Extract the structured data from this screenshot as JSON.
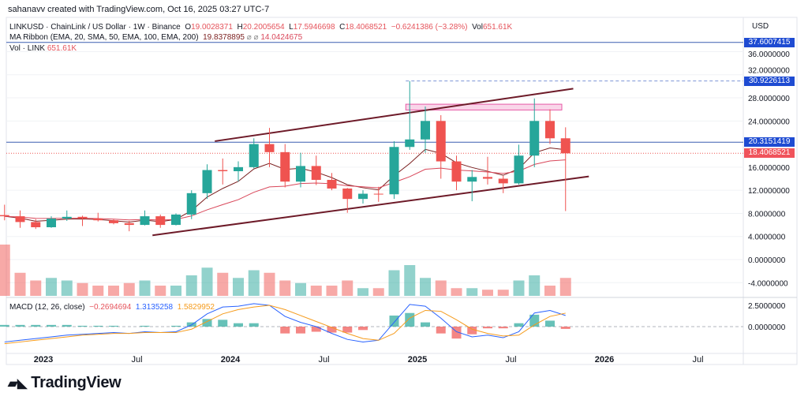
{
  "credit": "sahanavv created with TradingView.com, Oct 16, 2025 03:27 UTC-7",
  "legend": {
    "symbol": "LINKUSD · ChainLink / US Dollar · 1W · Binance",
    "o_label": "O",
    "o": "19.0028371",
    "h_label": "H",
    "h": "20.2005654",
    "l_label": "L",
    "l": "17.5946698",
    "c_label": "C",
    "c": "18.4068521",
    "change": "−0.6241386 (−3.28%)",
    "vol_label": "Vol",
    "vol": "651.61K",
    "ma_title": "MA Ribbon (EMA, 20, SMA, 50, EMA, 100, EMA, 200)",
    "ma_v1": "19.8378895",
    "ma_na": "⌀ ⌀",
    "ma_v2": "14.0424675",
    "vol_title": "Vol · LINK",
    "vol_value": "651.61K",
    "macd_title": "MACD (12, 26, close)",
    "macd_hist": "−0.2694694",
    "macd": "1.3135258",
    "macd_signal": "1.5829952"
  },
  "price_axis": {
    "currency": "USD",
    "ticks": [
      "36.0000000",
      "32.0000000",
      "28.0000000",
      "24.0000000",
      "16.0000000",
      "12.0000000",
      "8.0000000",
      "4.0000000",
      "0.0000000",
      "-4.0000000"
    ],
    "tick_values": [
      36,
      32,
      28,
      24,
      16,
      12,
      8,
      4,
      0,
      -4
    ],
    "tags": [
      {
        "label": "37.6007415",
        "value": 37.6007415,
        "color": "#1e4bd2"
      },
      {
        "label": "30.9226113",
        "value": 30.9226113,
        "color": "#1e4bd2"
      },
      {
        "label": "20.3151419",
        "value": 20.3151419,
        "color": "#1e4bd2"
      },
      {
        "label": "18.4068521",
        "value": 18.4068521,
        "color": "#f0535b"
      }
    ]
  },
  "macd_axis": {
    "ticks": [
      "2.5000000",
      "0.0000000"
    ],
    "tick_values": [
      2.5,
      0
    ]
  },
  "time_axis": {
    "labels": [
      "2023",
      "Jul",
      "2024",
      "Jul",
      "2025",
      "Jul",
      "2026",
      "Jul"
    ],
    "bold": [
      true,
      false,
      true,
      false,
      true,
      false,
      true,
      false
    ]
  },
  "brand": "TradingView",
  "colors": {
    "up": "#26a69a",
    "down": "#ef5350",
    "ma_fast": "#7b1f1f",
    "ma_slow": "#d9475a",
    "macd": "#2962ff",
    "signal": "#f59b1c",
    "trendline": "#6d1a28",
    "zone": "#e75aa6"
  },
  "chart_data": {
    "type": "candlestick",
    "interval": "1W (shown approximately per month)",
    "months": [
      "2022-10",
      "2022-11",
      "2022-12",
      "2023-01",
      "2023-02",
      "2023-03",
      "2023-04",
      "2023-05",
      "2023-06",
      "2023-07",
      "2023-08",
      "2023-09",
      "2023-10",
      "2023-11",
      "2023-12",
      "2024-01",
      "2024-02",
      "2024-03",
      "2024-04",
      "2024-05",
      "2024-06",
      "2024-07",
      "2024-08",
      "2024-09",
      "2024-10",
      "2024-11",
      "2024-12",
      "2025-01",
      "2025-02",
      "2025-03",
      "2025-04",
      "2025-05",
      "2025-06",
      "2025-07",
      "2025-08",
      "2025-09",
      "2025-10"
    ],
    "ohlc": [
      [
        7.7,
        9.5,
        6.8,
        7.5
      ],
      [
        7.5,
        8.5,
        5.5,
        6.5
      ],
      [
        6.5,
        7,
        5.3,
        5.6
      ],
      [
        5.6,
        7.5,
        5.5,
        7.1
      ],
      [
        7.1,
        8.5,
        6.7,
        7.4
      ],
      [
        7.4,
        7.6,
        5.8,
        7.1
      ],
      [
        7.1,
        8.1,
        6.6,
        6.8
      ],
      [
        6.8,
        7,
        6.1,
        6.3
      ],
      [
        6.3,
        6.7,
        4.9,
        6.0
      ],
      [
        6.0,
        8.5,
        5.9,
        7.5
      ],
      [
        7.5,
        7.8,
        5.5,
        6.0
      ],
      [
        6.0,
        8.0,
        5.9,
        7.8
      ],
      [
        7.8,
        12,
        7,
        11.5
      ],
      [
        11.5,
        16.5,
        10.5,
        15.5
      ],
      [
        15.5,
        17.5,
        13,
        15.3
      ],
      [
        15.3,
        17,
        13.5,
        16
      ],
      [
        16,
        21,
        15.8,
        20
      ],
      [
        20,
        22.8,
        16,
        18.6
      ],
      [
        18.6,
        20,
        12.5,
        13.5
      ],
      [
        13.5,
        18.5,
        12.5,
        16.2
      ],
      [
        16.2,
        18,
        12.9,
        13.8
      ],
      [
        13.8,
        15,
        12,
        12.3
      ],
      [
        12.3,
        12.4,
        8.1,
        10.5
      ],
      [
        10.5,
        12,
        9.7,
        11.4
      ],
      [
        11.4,
        12.6,
        10,
        11.3
      ],
      [
        11.3,
        20.5,
        10.5,
        19.5
      ],
      [
        19.5,
        30.9,
        19,
        20.8
      ],
      [
        20.8,
        26.5,
        18.5,
        24
      ],
      [
        24,
        25,
        14,
        17
      ],
      [
        17,
        18,
        12,
        13.5
      ],
      [
        13.5,
        15.5,
        10.1,
        14.3
      ],
      [
        14.3,
        17.8,
        13,
        14
      ],
      [
        14,
        14.5,
        11.5,
        13.2
      ],
      [
        13.2,
        19.9,
        13,
        18
      ],
      [
        18,
        27.9,
        16,
        24
      ],
      [
        24,
        26,
        20,
        21
      ],
      [
        21,
        22.9,
        8.4,
        18.4
      ]
    ],
    "volume_relative": [
      1.0,
      0.45,
      0.3,
      0.35,
      0.3,
      0.25,
      0.2,
      0.2,
      0.25,
      0.3,
      0.2,
      0.2,
      0.4,
      0.55,
      0.45,
      0.35,
      0.5,
      0.45,
      0.3,
      0.25,
      0.2,
      0.2,
      0.3,
      0.15,
      0.15,
      0.5,
      0.6,
      0.35,
      0.3,
      0.15,
      0.15,
      0.12,
      0.12,
      0.3,
      0.4,
      0.2,
      0.35
    ],
    "macd": [
      -1.8,
      -1.6,
      -1.4,
      -1.2,
      -1.0,
      -0.9,
      -0.8,
      -0.7,
      -0.8,
      -0.6,
      -0.7,
      -0.6,
      0.2,
      1.5,
      2.3,
      2.4,
      2.7,
      2.5,
      1.2,
      0.5,
      0.0,
      -0.8,
      -1.5,
      -1.8,
      -1.6,
      0.5,
      2.6,
      2.4,
      1.0,
      -0.6,
      -1.2,
      -1.0,
      -1.3,
      -0.6,
      1.6,
      1.9,
      1.31
    ],
    "signal": [
      -2.0,
      -1.8,
      -1.6,
      -1.4,
      -1.2,
      -1.0,
      -0.9,
      -0.8,
      -0.8,
      -0.7,
      -0.7,
      -0.7,
      -0.3,
      0.6,
      1.5,
      2.0,
      2.3,
      2.5,
      2.0,
      1.3,
      0.6,
      -0.1,
      -0.8,
      -1.4,
      -1.6,
      -0.8,
      1.0,
      1.9,
      1.8,
      0.8,
      -0.3,
      -0.8,
      -1.1,
      -1.0,
      0.2,
      1.2,
      1.58
    ],
    "drawings": {
      "upper_trendline": [
        [
          "2023-12",
          20.5
        ],
        [
          "2025-11",
          29.6
        ]
      ],
      "lower_trendline": [
        [
          "2023-08",
          4.2
        ],
        [
          "2025-12",
          14.4
        ]
      ],
      "resistance_zone": {
        "from": "2024-12",
        "to": "2025-09",
        "low": 25.9,
        "high": 26.9
      },
      "dashed_level": {
        "value": 30.9226113,
        "from": "2024-12"
      },
      "horizontal_levels": [
        37.6007415,
        20.3151419
      ]
    }
  }
}
